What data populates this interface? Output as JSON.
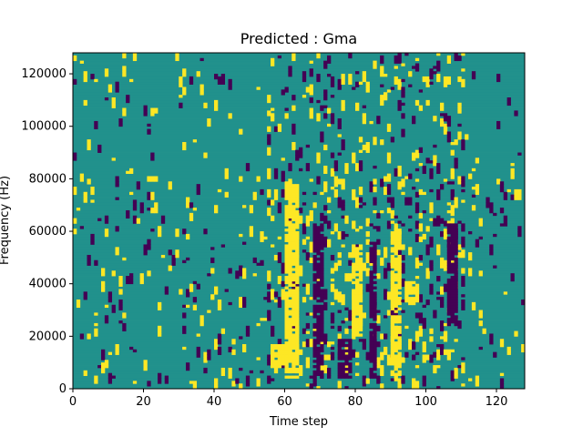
{
  "chart_data": {
    "type": "heatmap",
    "title": "Predicted : Gma",
    "xlabel": "Time step",
    "ylabel": "Frequency (Hz)",
    "xlim": [
      0,
      128
    ],
    "ylim": [
      0,
      128000
    ],
    "x_ticks": [
      0,
      20,
      40,
      60,
      80,
      100,
      120
    ],
    "y_ticks": [
      0,
      20000,
      40000,
      60000,
      80000,
      100000,
      120000
    ],
    "n_time_steps": 128,
    "n_freq_bins": 128,
    "colors": {
      "background": "#21918c",
      "high": "#fde725",
      "low": "#440154"
    },
    "value_levels": {
      "low": 0,
      "background": 0.5,
      "high": 1
    },
    "dense_high_region": {
      "time_step_range": [
        60,
        63
      ],
      "frequency_range_hz": [
        4000,
        78000
      ]
    },
    "high_regions": [
      {
        "t": [
          60,
          63
        ],
        "f": [
          4000,
          78000
        ]
      },
      {
        "t": [
          79,
          81
        ],
        "f": [
          20000,
          54000
        ]
      },
      {
        "t": [
          90,
          92
        ],
        "f": [
          5000,
          60000
        ]
      },
      {
        "t": [
          56,
          59
        ],
        "f": [
          8000,
          16000
        ]
      },
      {
        "t": [
          94,
          97
        ],
        "f": [
          32000,
          40000
        ]
      }
    ],
    "low_regions": [
      {
        "t": [
          68,
          70
        ],
        "f": [
          4000,
          62000
        ]
      },
      {
        "t": [
          75,
          78
        ],
        "f": [
          4000,
          18000
        ]
      },
      {
        "t": [
          84,
          85
        ],
        "f": [
          4000,
          55000
        ]
      },
      {
        "t": [
          106,
          108
        ],
        "f": [
          24000,
          62000
        ]
      }
    ]
  }
}
